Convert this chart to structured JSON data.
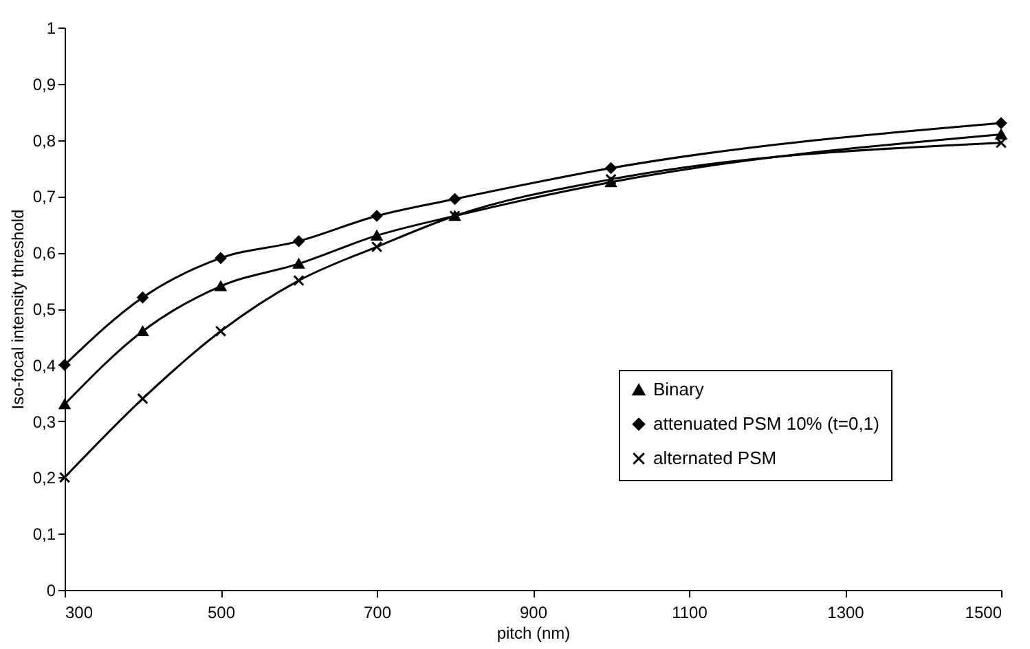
{
  "chart_data": {
    "type": "line",
    "xlabel": "pitch (nm)",
    "ylabel": "Iso-focal intensity threshold",
    "x": [
      300,
      400,
      500,
      600,
      700,
      800,
      1000,
      1500
    ],
    "series": [
      {
        "name": "Binary",
        "color": "#000000",
        "marker": "triangle",
        "values": [
          0.33,
          0.46,
          0.54,
          0.58,
          0.63,
          0.665,
          0.725,
          0.81
        ]
      },
      {
        "name": "attenuated PSM 10% (t=0,1)",
        "color": "#000000",
        "marker": "diamond",
        "values": [
          0.4,
          0.52,
          0.59,
          0.62,
          0.665,
          0.695,
          0.75,
          0.83
        ]
      },
      {
        "name": "alternated PSM",
        "color": "#000000",
        "marker": "cross",
        "values": [
          0.2,
          0.34,
          0.46,
          0.55,
          0.61,
          0.665,
          0.73,
          0.795
        ]
      }
    ],
    "xlim": [
      300,
      1500
    ],
    "xticks": [
      300,
      500,
      700,
      900,
      1100,
      1300,
      1500
    ],
    "ylim": [
      0,
      1
    ],
    "yticks": [
      0,
      {
        "value": 0.1,
        "label": "0,1"
      },
      {
        "value": 0.2,
        "label": "0,2"
      },
      {
        "value": 0.3,
        "label": "0,3"
      },
      {
        "value": 0.4,
        "label": "0,4"
      },
      {
        "value": 0.5,
        "label": "0,5"
      },
      {
        "value": 0.6,
        "label": "0,6"
      },
      {
        "value": 0.7,
        "label": "0,7"
      },
      {
        "value": 0.8,
        "label": "0,8"
      },
      {
        "value": 0.9,
        "label": "0,9"
      },
      1
    ],
    "grid": false,
    "legend": "bottom right",
    "line_style": "solid"
  }
}
